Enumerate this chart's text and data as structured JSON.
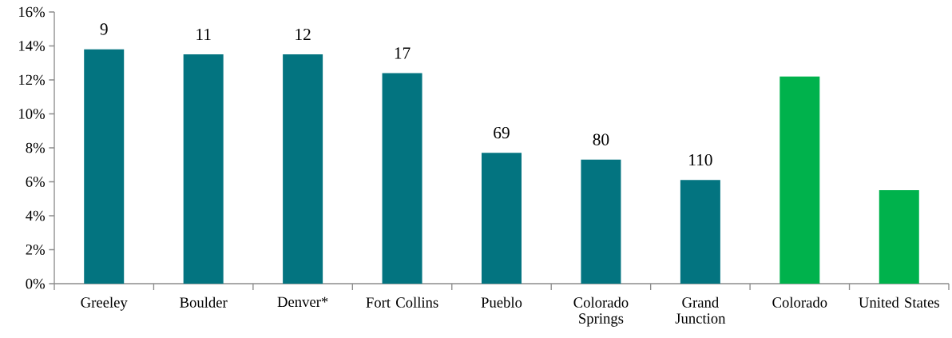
{
  "chart_data": {
    "type": "bar",
    "categories": [
      "Greeley",
      "Boulder",
      "Denver*",
      "Fort Collins",
      "Pueblo",
      "Colorado Springs",
      "Grand Junction",
      "Colorado",
      "United States"
    ],
    "values": [
      13.8,
      13.5,
      13.5,
      12.4,
      7.7,
      7.3,
      6.1,
      12.2,
      5.5
    ],
    "colors": [
      "#037480",
      "#037480",
      "#037480",
      "#037480",
      "#037480",
      "#037480",
      "#037480",
      "#00b24c",
      "#00b24c"
    ],
    "ylim": [
      0,
      16
    ],
    "yticks": [
      {
        "value": 0,
        "label": "0%"
      },
      {
        "value": 2,
        "label": "2%"
      },
      {
        "value": 4,
        "label": "4%"
      },
      {
        "value": 6,
        "label": "6%"
      },
      {
        "value": 8,
        "label": "8%"
      },
      {
        "value": 10,
        "label": "10%"
      },
      {
        "value": 12,
        "label": "12%"
      },
      {
        "value": 14,
        "label": "14%"
      },
      {
        "value": 16,
        "label": "16%"
      }
    ],
    "grid": false,
    "annotations": [
      {
        "text": "9",
        "x": "Greeley",
        "y": 13.8
      },
      {
        "text": "11",
        "x": "Boulder",
        "y": 13.5
      },
      {
        "text": "12",
        "x": "Denver*",
        "y": 13.5
      },
      {
        "text": "17",
        "x": "Fort Collins",
        "y": 12.4
      },
      {
        "text": "69",
        "x": "Pueblo",
        "y": 7.7
      },
      {
        "text": "80",
        "x": "Colorado Springs",
        "y": 7.3
      },
      {
        "text": "110",
        "x": "Grand Junction",
        "y": 6.1
      }
    ]
  }
}
